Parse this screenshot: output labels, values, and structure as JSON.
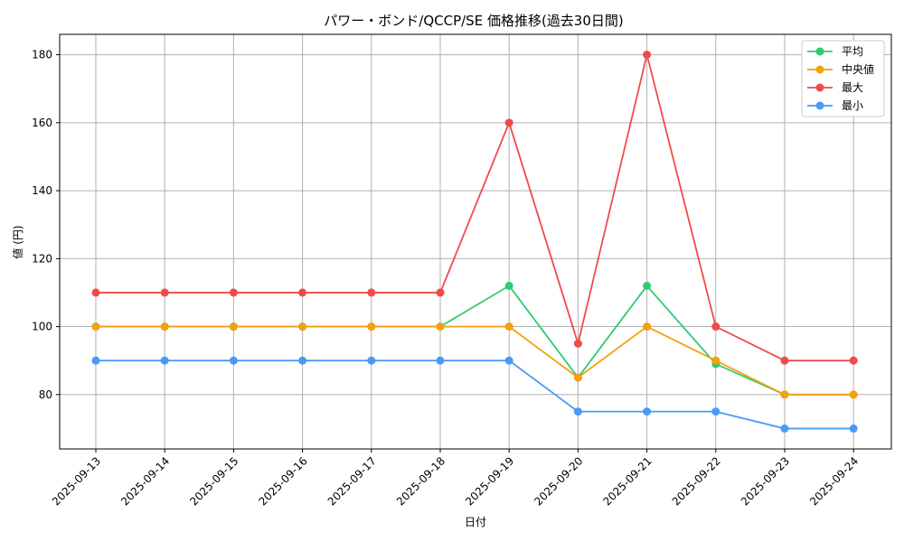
{
  "chart_data": {
    "type": "line",
    "title": "パワー・ボンド/QCCP/SE 価格推移(過去30日間)",
    "xlabel": "日付",
    "ylabel": "値 (円)",
    "categories": [
      "2025-09-13",
      "2025-09-14",
      "2025-09-15",
      "2025-09-16",
      "2025-09-17",
      "2025-09-18",
      "2025-09-19",
      "2025-09-20",
      "2025-09-21",
      "2025-09-22",
      "2025-09-23",
      "2025-09-24"
    ],
    "ylim": [
      64,
      186
    ],
    "yticks": [
      80,
      100,
      120,
      140,
      160,
      180
    ],
    "grid": true,
    "legend_position": "top-right",
    "series": [
      {
        "name": "平均",
        "color": "#2ecc71",
        "values": [
          100,
          100,
          100,
          100,
          100,
          100,
          112,
          85,
          112,
          89,
          80,
          80
        ]
      },
      {
        "name": "中央値",
        "color": "#f5a00f",
        "values": [
          100,
          100,
          100,
          100,
          100,
          100,
          100,
          85,
          100,
          90,
          80,
          80
        ]
      },
      {
        "name": "最大",
        "color": "#ef4b4b",
        "values": [
          110,
          110,
          110,
          110,
          110,
          110,
          160,
          95,
          180,
          100,
          90,
          90
        ]
      },
      {
        "name": "最小",
        "color": "#4a9af5",
        "values": [
          90,
          90,
          90,
          90,
          90,
          90,
          90,
          75,
          75,
          75,
          70,
          70
        ]
      }
    ]
  }
}
